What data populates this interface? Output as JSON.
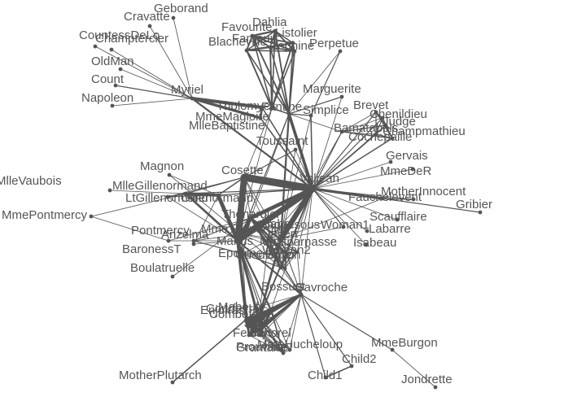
{
  "colors": {
    "node": "#555555",
    "edge": "#555555",
    "label": "#555555",
    "background": "#ffffff"
  },
  "nodes": [
    {
      "id": "Myriel",
      "label": "Myriel"
    },
    {
      "id": "Napoleon",
      "label": "Napoleon"
    },
    {
      "id": "MlleBaptistine",
      "label": "MlleBaptistine"
    },
    {
      "id": "MmeMagloire",
      "label": "MmeMagloire"
    },
    {
      "id": "CountessDeLo",
      "label": "CountessDeLo"
    },
    {
      "id": "Geborand",
      "label": "Geborand"
    },
    {
      "id": "Champtercier",
      "label": "Champtercier"
    },
    {
      "id": "Cravatte",
      "label": "Cravatte"
    },
    {
      "id": "Count",
      "label": "Count"
    },
    {
      "id": "OldMan",
      "label": "OldMan"
    },
    {
      "id": "Labarre",
      "label": "Labarre"
    },
    {
      "id": "Valjean",
      "label": "Valjean"
    },
    {
      "id": "Marguerite",
      "label": "Marguerite"
    },
    {
      "id": "MmeDeR",
      "label": "MmeDeR"
    },
    {
      "id": "Isabeau",
      "label": "Isabeau"
    },
    {
      "id": "Gervais",
      "label": "Gervais"
    },
    {
      "id": "Tholomyes",
      "label": "Tholomyes"
    },
    {
      "id": "Listolier",
      "label": "Listolier"
    },
    {
      "id": "Fameuil",
      "label": "Fameuil"
    },
    {
      "id": "Blacheville",
      "label": "Blacheville"
    },
    {
      "id": "Favourite",
      "label": "Favourite"
    },
    {
      "id": "Dahlia",
      "label": "Dahlia"
    },
    {
      "id": "Zephine",
      "label": "Zephine"
    },
    {
      "id": "Fantine",
      "label": "Fantine"
    },
    {
      "id": "MmeThenardier",
      "label": "MmeThenardier"
    },
    {
      "id": "Thenardier",
      "label": "Thenardier"
    },
    {
      "id": "Cosette",
      "label": "Cosette"
    },
    {
      "id": "Javert",
      "label": "Javert"
    },
    {
      "id": "Fauchelevent",
      "label": "Fauchelevent"
    },
    {
      "id": "Bamatabois",
      "label": "Bamatabois"
    },
    {
      "id": "Perpetue",
      "label": "Perpetue"
    },
    {
      "id": "Simplice",
      "label": "Simplice"
    },
    {
      "id": "Scaufflaire",
      "label": "Scaufflaire"
    },
    {
      "id": "Woman1",
      "label": "Woman1"
    },
    {
      "id": "Judge",
      "label": "Judge"
    },
    {
      "id": "Champmathieu",
      "label": "Champmathieu"
    },
    {
      "id": "Brevet",
      "label": "Brevet"
    },
    {
      "id": "Chenildieu",
      "label": "Chenildieu"
    },
    {
      "id": "Cochepaille",
      "label": "Cochepaille"
    },
    {
      "id": "Pontmercy",
      "label": "Pontmercy"
    },
    {
      "id": "Boulatruelle",
      "label": "Boulatruelle"
    },
    {
      "id": "Eponine",
      "label": "Eponine"
    },
    {
      "id": "Anzelma",
      "label": "Anzelma"
    },
    {
      "id": "Woman2",
      "label": "Woman2"
    },
    {
      "id": "MotherInnocent",
      "label": "MotherInnocent"
    },
    {
      "id": "Gribier",
      "label": "Gribier"
    },
    {
      "id": "Jondrette",
      "label": "Jondrette"
    },
    {
      "id": "MmeBurgon",
      "label": "MmeBurgon"
    },
    {
      "id": "Gavroche",
      "label": "Gavroche"
    },
    {
      "id": "Gillenormand",
      "label": "Gillenormand"
    },
    {
      "id": "Magnon",
      "label": "Magnon"
    },
    {
      "id": "MlleGillenormand",
      "label": "MlleGillenormand"
    },
    {
      "id": "MmePontmercy",
      "label": "MmePontmercy"
    },
    {
      "id": "MlleVaubois",
      "label": "MlleVaubois"
    },
    {
      "id": "LtGillenormand",
      "label": "LtGillenormand"
    },
    {
      "id": "Marius",
      "label": "Marius"
    },
    {
      "id": "BaronessT",
      "label": "BaronessT"
    },
    {
      "id": "Mabeuf",
      "label": "Mabeuf"
    },
    {
      "id": "Enjolras",
      "label": "Enjolras"
    },
    {
      "id": "Combeferre",
      "label": "Combeferre"
    },
    {
      "id": "Prouvaire",
      "label": "Prouvaire"
    },
    {
      "id": "Feuilly",
      "label": "Feuilly"
    },
    {
      "id": "Courfeyrac",
      "label": "Courfeyrac"
    },
    {
      "id": "Bahorel",
      "label": "Bahorel"
    },
    {
      "id": "Bossuet",
      "label": "Bossuet"
    },
    {
      "id": "Joly",
      "label": "Joly"
    },
    {
      "id": "Grantaire",
      "label": "Grantaire"
    },
    {
      "id": "MotherPlutarch",
      "label": "MotherPlutarch"
    },
    {
      "id": "Gueulemer",
      "label": "Gueulemer"
    },
    {
      "id": "Babet",
      "label": "Babet"
    },
    {
      "id": "Claquesous",
      "label": "Claquesous"
    },
    {
      "id": "Montparnasse",
      "label": "Montparnasse"
    },
    {
      "id": "Toussaint",
      "label": "Toussaint"
    },
    {
      "id": "Child1",
      "label": "Child1"
    },
    {
      "id": "Child2",
      "label": "Child2"
    },
    {
      "id": "Brujon",
      "label": "Brujon"
    },
    {
      "id": "MmeHucheloup",
      "label": "MmeHucheloup"
    }
  ],
  "edges": [
    [
      "Myriel",
      "Napoleon",
      1
    ],
    [
      "Myriel",
      "MlleBaptistine",
      8
    ],
    [
      "Myriel",
      "MmeMagloire",
      10
    ],
    [
      "MlleBaptistine",
      "MmeMagloire",
      6
    ],
    [
      "Myriel",
      "CountessDeLo",
      1
    ],
    [
      "Myriel",
      "Geborand",
      1
    ],
    [
      "Myriel",
      "Champtercier",
      1
    ],
    [
      "Myriel",
      "Cravatte",
      1
    ],
    [
      "Myriel",
      "Count",
      2
    ],
    [
      "Myriel",
      "OldMan",
      1
    ],
    [
      "Valjean",
      "Labarre",
      1
    ],
    [
      "Valjean",
      "MmeMagloire",
      3
    ],
    [
      "Valjean",
      "MlleBaptistine",
      3
    ],
    [
      "Valjean",
      "Myriel",
      5
    ],
    [
      "Valjean",
      "Marguerite",
      1
    ],
    [
      "Valjean",
      "MmeDeR",
      1
    ],
    [
      "Valjean",
      "Isabeau",
      1
    ],
    [
      "Valjean",
      "Gervais",
      1
    ],
    [
      "Tholomyes",
      "Listolier",
      4
    ],
    [
      "Tholomyes",
      "Fameuil",
      4
    ],
    [
      "Tholomyes",
      "Blacheville",
      4
    ],
    [
      "Tholomyes",
      "Favourite",
      3
    ],
    [
      "Tholomyes",
      "Dahlia",
      3
    ],
    [
      "Tholomyes",
      "Zephine",
      3
    ],
    [
      "Tholomyes",
      "Fantine",
      3
    ],
    [
      "Listolier",
      "Fameuil",
      4
    ],
    [
      "Listolier",
      "Blacheville",
      4
    ],
    [
      "Listolier",
      "Favourite",
      4
    ],
    [
      "Listolier",
      "Dahlia",
      3
    ],
    [
      "Listolier",
      "Zephine",
      3
    ],
    [
      "Listolier",
      "Fantine",
      3
    ],
    [
      "Fameuil",
      "Blacheville",
      4
    ],
    [
      "Fameuil",
      "Favourite",
      4
    ],
    [
      "Fameuil",
      "Dahlia",
      3
    ],
    [
      "Fameuil",
      "Zephine",
      3
    ],
    [
      "Fameuil",
      "Fantine",
      3
    ],
    [
      "Blacheville",
      "Favourite",
      4
    ],
    [
      "Blacheville",
      "Dahlia",
      3
    ],
    [
      "Blacheville",
      "Zephine",
      3
    ],
    [
      "Blacheville",
      "Fantine",
      3
    ],
    [
      "Favourite",
      "Dahlia",
      5
    ],
    [
      "Favourite",
      "Zephine",
      4
    ],
    [
      "Favourite",
      "Fantine",
      4
    ],
    [
      "Dahlia",
      "Zephine",
      4
    ],
    [
      "Dahlia",
      "Fantine",
      4
    ],
    [
      "Zephine",
      "Fantine",
      4
    ],
    [
      "Fantine",
      "Marguerite",
      2
    ],
    [
      "Fantine",
      "Valjean",
      9
    ],
    [
      "MmeThenardier",
      "Fantine",
      2
    ],
    [
      "MmeThenardier",
      "Valjean",
      7
    ],
    [
      "Thenardier",
      "MmeThenardier",
      13
    ],
    [
      "Thenardier",
      "Fantine",
      1
    ],
    [
      "Thenardier",
      "Valjean",
      12
    ],
    [
      "Cosette",
      "MmeThenardier",
      4
    ],
    [
      "Cosette",
      "Valjean",
      31
    ],
    [
      "Cosette",
      "Tholomyes",
      1
    ],
    [
      "Cosette",
      "Thenardier",
      1
    ],
    [
      "Javert",
      "Valjean",
      17
    ],
    [
      "Javert",
      "Fantine",
      5
    ],
    [
      "Javert",
      "Thenardier",
      5
    ],
    [
      "Javert",
      "MmeThenardier",
      1
    ],
    [
      "Javert",
      "Cosette",
      1
    ],
    [
      "Fauchelevent",
      "Valjean",
      8
    ],
    [
      "Fauchelevent",
      "Javert",
      1
    ],
    [
      "Bamatabois",
      "Fantine",
      1
    ],
    [
      "Bamatabois",
      "Javert",
      1
    ],
    [
      "Bamatabois",
      "Valjean",
      2
    ],
    [
      "Perpetue",
      "Fantine",
      1
    ],
    [
      "Simplice",
      "Perpetue",
      2
    ],
    [
      "Simplice",
      "Valjean",
      3
    ],
    [
      "Simplice",
      "Fantine",
      2
    ],
    [
      "Simplice",
      "Javert",
      1
    ],
    [
      "Scaufflaire",
      "Valjean",
      1
    ],
    [
      "Woman1",
      "Valjean",
      2
    ],
    [
      "Woman1",
      "Javert",
      1
    ],
    [
      "Judge",
      "Valjean",
      3
    ],
    [
      "Judge",
      "Bamatabois",
      2
    ],
    [
      "Champmathieu",
      "Valjean",
      3
    ],
    [
      "Champmathieu",
      "Judge",
      3
    ],
    [
      "Champmathieu",
      "Bamatabois",
      2
    ],
    [
      "Brevet",
      "Judge",
      2
    ],
    [
      "Brevet",
      "Champmathieu",
      2
    ],
    [
      "Brevet",
      "Valjean",
      2
    ],
    [
      "Brevet",
      "Bamatabois",
      1
    ],
    [
      "Chenildieu",
      "Judge",
      2
    ],
    [
      "Chenildieu",
      "Champmathieu",
      2
    ],
    [
      "Chenildieu",
      "Brevet",
      2
    ],
    [
      "Chenildieu",
      "Valjean",
      2
    ],
    [
      "Chenildieu",
      "Bamatabois",
      1
    ],
    [
      "Cochepaille",
      "Judge",
      2
    ],
    [
      "Cochepaille",
      "Champmathieu",
      2
    ],
    [
      "Cochepaille",
      "Brevet",
      2
    ],
    [
      "Cochepaille",
      "Chenildieu",
      2
    ],
    [
      "Cochepaille",
      "Valjean",
      2
    ],
    [
      "Cochepaille",
      "Bamatabois",
      1
    ],
    [
      "Pontmercy",
      "Thenardier",
      1
    ],
    [
      "Boulatruelle",
      "Thenardier",
      1
    ],
    [
      "Eponine",
      "MmeThenardier",
      2
    ],
    [
      "Eponine",
      "Thenardier",
      3
    ],
    [
      "Anzelma",
      "Eponine",
      2
    ],
    [
      "Anzelma",
      "Thenardier",
      2
    ],
    [
      "Anzelma",
      "MmeThenardier",
      1
    ],
    [
      "Woman2",
      "Valjean",
      3
    ],
    [
      "Woman2",
      "Cosette",
      1
    ],
    [
      "Woman2",
      "Javert",
      1
    ],
    [
      "MotherInnocent",
      "Fauchelevent",
      3
    ],
    [
      "MotherInnocent",
      "Valjean",
      1
    ],
    [
      "Gribier",
      "Fauchelevent",
      2
    ],
    [
      "MmeBurgon",
      "Jondrette",
      1
    ],
    [
      "Gavroche",
      "MmeBurgon",
      2
    ],
    [
      "Gavroche",
      "Thenardier",
      1
    ],
    [
      "Gavroche",
      "Javert",
      1
    ],
    [
      "Gavroche",
      "Valjean",
      1
    ],
    [
      "Gillenormand",
      "Cosette",
      3
    ],
    [
      "Gillenormand",
      "Valjean",
      2
    ],
    [
      "Magnon",
      "Gillenormand",
      1
    ],
    [
      "Magnon",
      "MmeThenardier",
      1
    ],
    [
      "MlleGillenormand",
      "Gillenormand",
      9
    ],
    [
      "MlleGillenormand",
      "Cosette",
      2
    ],
    [
      "MlleGillenormand",
      "Valjean",
      2
    ],
    [
      "MmePontmercy",
      "MlleGillenormand",
      1
    ],
    [
      "MmePontmercy",
      "Pontmercy",
      1
    ],
    [
      "MlleVaubois",
      "MlleGillenormand",
      1
    ],
    [
      "LtGillenormand",
      "MlleGillenormand",
      2
    ],
    [
      "LtGillenormand",
      "Gillenormand",
      1
    ],
    [
      "LtGillenormand",
      "Cosette",
      1
    ],
    [
      "Marius",
      "MlleGillenormand",
      6
    ],
    [
      "Marius",
      "Gillenormand",
      12
    ],
    [
      "Marius",
      "Pontmercy",
      1
    ],
    [
      "Marius",
      "LtGillenormand",
      1
    ],
    [
      "Marius",
      "Cosette",
      21
    ],
    [
      "Marius",
      "Valjean",
      19
    ],
    [
      "Marius",
      "Tholomyes",
      1
    ],
    [
      "Marius",
      "Thenardier",
      2
    ],
    [
      "Marius",
      "Eponine",
      5
    ],
    [
      "Marius",
      "Gavroche",
      4
    ],
    [
      "BaronessT",
      "Gillenormand",
      1
    ],
    [
      "BaronessT",
      "Marius",
      1
    ],
    [
      "Mabeuf",
      "Marius",
      1
    ],
    [
      "Mabeuf",
      "Eponine",
      1
    ],
    [
      "Mabeuf",
      "Gavroche",
      1
    ],
    [
      "Enjolras",
      "Marius",
      7
    ],
    [
      "Enjolras",
      "Gavroche",
      7
    ],
    [
      "Enjolras",
      "Javert",
      6
    ],
    [
      "Enjolras",
      "Mabeuf",
      1
    ],
    [
      "Enjolras",
      "Valjean",
      4
    ],
    [
      "Combeferre",
      "Enjolras",
      15
    ],
    [
      "Combeferre",
      "Marius",
      5
    ],
    [
      "Combeferre",
      "Gavroche",
      6
    ],
    [
      "Combeferre",
      "Mabeuf",
      2
    ],
    [
      "Prouvaire",
      "Gavroche",
      1
    ],
    [
      "Prouvaire",
      "Enjolras",
      4
    ],
    [
      "Prouvaire",
      "Combeferre",
      2
    ],
    [
      "Feuilly",
      "Gavroche",
      2
    ],
    [
      "Feuilly",
      "Prouvaire",
      2
    ],
    [
      "Feuilly",
      "Enjolras",
      6
    ],
    [
      "Feuilly",
      "Combeferre",
      5
    ],
    [
      "Feuilly",
      "Mabeuf",
      1
    ],
    [
      "Feuilly",
      "Marius",
      1
    ],
    [
      "Courfeyrac",
      "Marius",
      9
    ],
    [
      "Courfeyrac",
      "Enjolras",
      17
    ],
    [
      "Courfeyrac",
      "Combeferre",
      13
    ],
    [
      "Courfeyrac",
      "Gavroche",
      7
    ],
    [
      "Courfeyrac",
      "Mabeuf",
      2
    ],
    [
      "Courfeyrac",
      "Eponine",
      1
    ],
    [
      "Courfeyrac",
      "Feuilly",
      6
    ],
    [
      "Courfeyrac",
      "Prouvaire",
      3
    ],
    [
      "Bahorel",
      "Combeferre",
      5
    ],
    [
      "Bahorel",
      "Gavroche",
      5
    ],
    [
      "Bahorel",
      "Courfeyrac",
      6
    ],
    [
      "Bahorel",
      "Mabeuf",
      2
    ],
    [
      "Bahorel",
      "Enjolras",
      4
    ],
    [
      "Bahorel",
      "Feuilly",
      3
    ],
    [
      "Bahorel",
      "Prouvaire",
      2
    ],
    [
      "Bahorel",
      "Marius",
      1
    ],
    [
      "Bossuet",
      "Marius",
      5
    ],
    [
      "Bossuet",
      "Courfeyrac",
      12
    ],
    [
      "Bossuet",
      "Gavroche",
      5
    ],
    [
      "Bossuet",
      "Bahorel",
      4
    ],
    [
      "Bossuet",
      "Enjolras",
      10
    ],
    [
      "Bossuet",
      "Feuilly",
      6
    ],
    [
      "Bossuet",
      "Prouvaire",
      2
    ],
    [
      "Bossuet",
      "Combeferre",
      9
    ],
    [
      "Bossuet",
      "Mabeuf",
      1
    ],
    [
      "Bossuet",
      "Valjean",
      1
    ],
    [
      "Joly",
      "Bahorel",
      5
    ],
    [
      "Joly",
      "Bossuet",
      7
    ],
    [
      "Joly",
      "Gavroche",
      3
    ],
    [
      "Joly",
      "Courfeyrac",
      5
    ],
    [
      "Joly",
      "Enjolras",
      5
    ],
    [
      "Joly",
      "Feuilly",
      5
    ],
    [
      "Joly",
      "Prouvaire",
      2
    ],
    [
      "Joly",
      "Combeferre",
      5
    ],
    [
      "Joly",
      "Mabeuf",
      1
    ],
    [
      "Joly",
      "Marius",
      2
    ],
    [
      "Grantaire",
      "Bossuet",
      3
    ],
    [
      "Grantaire",
      "Enjolras",
      3
    ],
    [
      "Grantaire",
      "Combeferre",
      1
    ],
    [
      "Grantaire",
      "Courfeyrac",
      2
    ],
    [
      "Grantaire",
      "Joly",
      2
    ],
    [
      "Grantaire",
      "Gavroche",
      1
    ],
    [
      "Grantaire",
      "Bahorel",
      1
    ],
    [
      "Grantaire",
      "Feuilly",
      1
    ],
    [
      "Grantaire",
      "Prouvaire",
      1
    ],
    [
      "MotherPlutarch",
      "Mabeuf",
      3
    ],
    [
      "Gueulemer",
      "Thenardier",
      5
    ],
    [
      "Gueulemer",
      "Valjean",
      1
    ],
    [
      "Gueulemer",
      "MmeThenardier",
      1
    ],
    [
      "Gueulemer",
      "Javert",
      1
    ],
    [
      "Gueulemer",
      "Gavroche",
      1
    ],
    [
      "Gueulemer",
      "Eponine",
      1
    ],
    [
      "Babet",
      "Thenardier",
      6
    ],
    [
      "Babet",
      "Gueulemer",
      6
    ],
    [
      "Babet",
      "Valjean",
      1
    ],
    [
      "Babet",
      "MmeThenardier",
      1
    ],
    [
      "Babet",
      "Javert",
      2
    ],
    [
      "Babet",
      "Gavroche",
      1
    ],
    [
      "Babet",
      "Eponine",
      1
    ],
    [
      "Claquesous",
      "Thenardier",
      4
    ],
    [
      "Claquesous",
      "Babet",
      4
    ],
    [
      "Claquesous",
      "Gueulemer",
      4
    ],
    [
      "Claquesous",
      "Valjean",
      1
    ],
    [
      "Claquesous",
      "MmeThenardier",
      1
    ],
    [
      "Claquesous",
      "Javert",
      1
    ],
    [
      "Claquesous",
      "Eponine",
      1
    ],
    [
      "Claquesous",
      "Enjolras",
      1
    ],
    [
      "Montparnasse",
      "Javert",
      1
    ],
    [
      "Montparnasse",
      "Babet",
      2
    ],
    [
      "Montparnasse",
      "Gueulemer",
      2
    ],
    [
      "Montparnasse",
      "Claquesous",
      2
    ],
    [
      "Montparnasse",
      "Valjean",
      1
    ],
    [
      "Montparnasse",
      "Gavroche",
      1
    ],
    [
      "Montparnasse",
      "Eponine",
      1
    ],
    [
      "Montparnasse",
      "Thenardier",
      1
    ],
    [
      "Toussaint",
      "Cosette",
      2
    ],
    [
      "Toussaint",
      "Javert",
      1
    ],
    [
      "Toussaint",
      "Valjean",
      1
    ],
    [
      "Child1",
      "Gavroche",
      2
    ],
    [
      "Child2",
      "Gavroche",
      2
    ],
    [
      "Child2",
      "Child1",
      3
    ],
    [
      "Brujon",
      "Babet",
      3
    ],
    [
      "Brujon",
      "Gueulemer",
      3
    ],
    [
      "Brujon",
      "Thenardier",
      3
    ],
    [
      "Brujon",
      "Gavroche",
      1
    ],
    [
      "Brujon",
      "Eponine",
      1
    ],
    [
      "Brujon",
      "Claquesous",
      1
    ],
    [
      "Brujon",
      "Montparnasse",
      1
    ],
    [
      "MmeHucheloup",
      "Bossuet",
      1
    ],
    [
      "MmeHucheloup",
      "Joly",
      1
    ],
    [
      "MmeHucheloup",
      "Grantaire",
      1
    ],
    [
      "MmeHucheloup",
      "Bahorel",
      1
    ],
    [
      "MmeHucheloup",
      "Courfeyrac",
      1
    ],
    [
      "MmeHucheloup",
      "Gavroche",
      1
    ],
    [
      "MmeHucheloup",
      "Enjolras",
      1
    ]
  ]
}
